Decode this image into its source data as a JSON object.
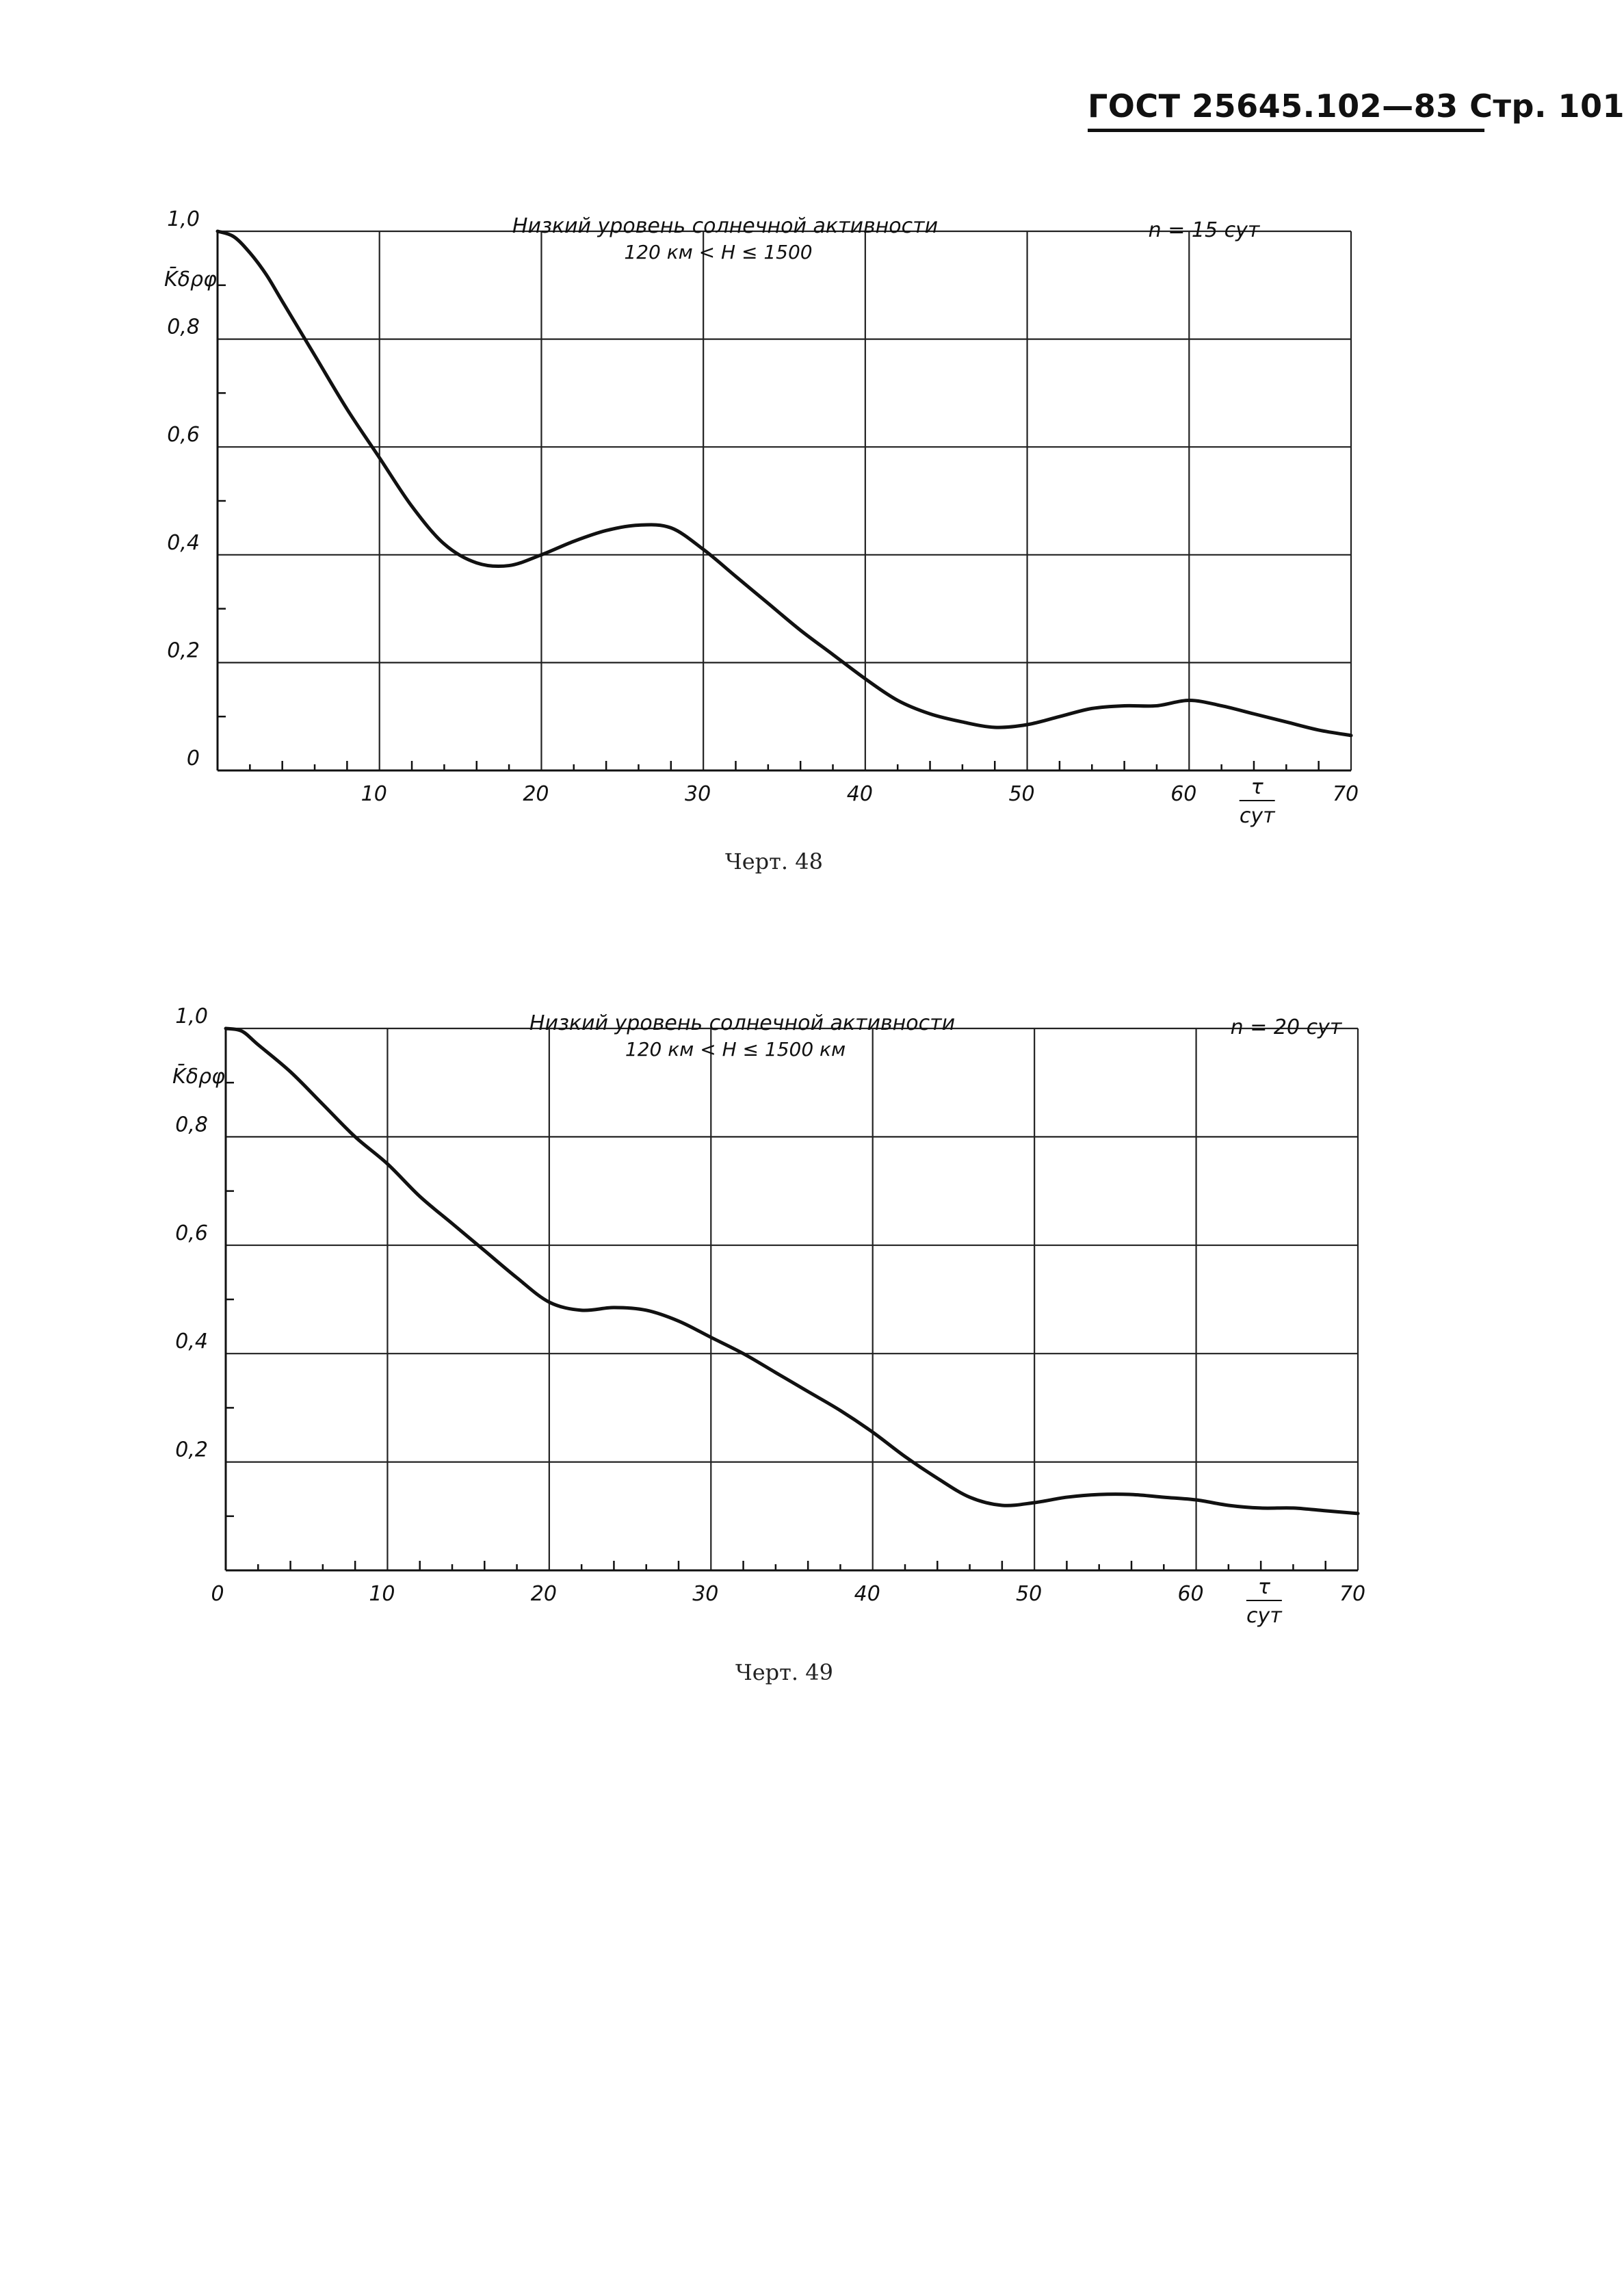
{
  "page_header": "ГОСТ 25645.102—83 Стр. 101",
  "charts": [
    {
      "caption": "Черт. 48",
      "title_line1": "Низкий уровень солнечной активности",
      "title_line2": "120 км < H ≤ 1500",
      "n_label": "n = 15 сут",
      "y_axis_label": "K̄δρφ",
      "x_axis_unit_num": "τ",
      "x_axis_unit_den": "сут",
      "x_tick_labels": [
        "10",
        "20",
        "30",
        "40",
        "50",
        "60",
        "70"
      ],
      "y_tick_labels": [
        "0",
        "0,2",
        "0,4",
        "0,6",
        "0,8",
        "1,0"
      ]
    },
    {
      "caption": "Черт. 49",
      "title_line1": "Низкий уровень солнечной активности",
      "title_line2": "120 км < H ≤ 1500 км",
      "n_label": "n = 20 сут",
      "y_axis_label": "K̄δρφ",
      "x_axis_unit_num": "τ",
      "x_axis_unit_den": "сут",
      "x_tick_labels": [
        "0",
        "10",
        "20",
        "30",
        "40",
        "50",
        "60",
        "70"
      ],
      "y_tick_labels": [
        "0,2",
        "0,4",
        "0,6",
        "0,8",
        "1,0"
      ]
    }
  ],
  "chart_data": [
    {
      "type": "line",
      "title": "Низкий уровень солнечной активности",
      "xlabel": "τ, сут",
      "ylabel": "K̄δρφ",
      "xlim": [
        0,
        70
      ],
      "ylim": [
        0,
        1.0
      ],
      "grid": true,
      "x": [
        0,
        1,
        2,
        3,
        4,
        6,
        8,
        10,
        12,
        14,
        16,
        18,
        20,
        22,
        24,
        26,
        28,
        30,
        32,
        34,
        36,
        38,
        40,
        42,
        44,
        46,
        48,
        50,
        52,
        54,
        56,
        58,
        60,
        62,
        64,
        66,
        68,
        70
      ],
      "series": [
        {
          "values": [
            1.0,
            0.99,
            0.96,
            0.92,
            0.87,
            0.77,
            0.67,
            0.58,
            0.49,
            0.42,
            0.385,
            0.38,
            0.4,
            0.425,
            0.445,
            0.455,
            0.45,
            0.41,
            0.36,
            0.31,
            0.26,
            0.215,
            0.17,
            0.13,
            0.105,
            0.09,
            0.08,
            0.085,
            0.1,
            0.115,
            0.12,
            0.12,
            0.13,
            0.12,
            0.105,
            0.09,
            0.075,
            0.065
          ]
        }
      ]
    },
    {
      "type": "line",
      "title": "Низкий уровень солнечной активности",
      "xlabel": "τ, сут",
      "ylabel": "K̄δρφ",
      "xlim": [
        0,
        70
      ],
      "ylim": [
        0,
        1.0
      ],
      "grid": true,
      "x": [
        0,
        1,
        2,
        4,
        6,
        8,
        10,
        12,
        14,
        16,
        18,
        20,
        22,
        24,
        26,
        28,
        30,
        32,
        34,
        36,
        38,
        40,
        42,
        44,
        46,
        48,
        50,
        52,
        54,
        56,
        58,
        60,
        62,
        64,
        66,
        68,
        70
      ],
      "series": [
        {
          "values": [
            1.0,
            0.995,
            0.97,
            0.92,
            0.86,
            0.8,
            0.75,
            0.69,
            0.64,
            0.59,
            0.54,
            0.495,
            0.48,
            0.485,
            0.48,
            0.46,
            0.43,
            0.4,
            0.365,
            0.33,
            0.295,
            0.255,
            0.21,
            0.17,
            0.135,
            0.12,
            0.125,
            0.135,
            0.14,
            0.14,
            0.135,
            0.13,
            0.12,
            0.115,
            0.115,
            0.11,
            0.105
          ]
        }
      ]
    }
  ]
}
